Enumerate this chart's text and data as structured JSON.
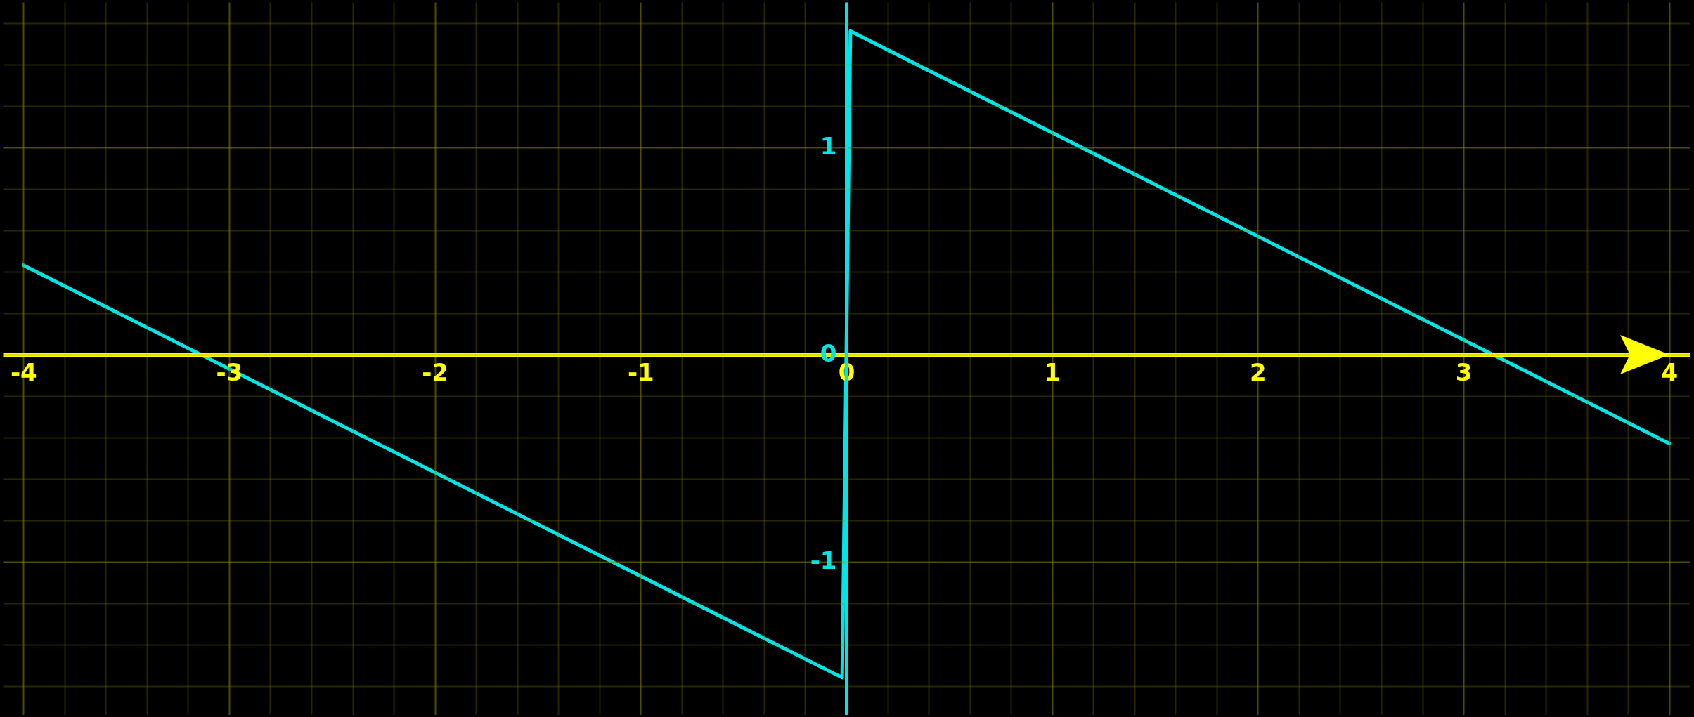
{
  "chart_data": {
    "type": "line",
    "x": [
      -4,
      -0.02,
      0.02,
      4
    ],
    "series": [
      {
        "color": "#00e5e5",
        "values": [
          0.43,
          -1.56,
          1.56,
          -0.43
        ]
      }
    ],
    "xlim": [
      -4.1,
      4.1
    ],
    "ylim": [
      -1.74,
      1.7
    ],
    "xticks": [
      -4,
      {
        "value": -3.8,
        "label": null
      },
      {
        "value": -3.6,
        "label": null
      },
      {
        "value": -3.4,
        "label": null
      },
      {
        "value": -3.2,
        "label": null
      },
      -3,
      {
        "value": -2.8,
        "label": null
      },
      {
        "value": -2.6,
        "label": null
      },
      {
        "value": -2.4,
        "label": null
      },
      {
        "value": -2.2,
        "label": null
      },
      -2,
      {
        "value": -1.8,
        "label": null
      },
      {
        "value": -1.6,
        "label": null
      },
      {
        "value": -1.4,
        "label": null
      },
      {
        "value": -1.2,
        "label": null
      },
      -1,
      {
        "value": -0.8,
        "label": null
      },
      {
        "value": -0.6,
        "label": null
      },
      {
        "value": -0.4,
        "label": null
      },
      {
        "value": -0.2,
        "label": null
      },
      0,
      {
        "value": 0.2,
        "label": null
      },
      {
        "value": 0.4,
        "label": null
      },
      {
        "value": 0.6,
        "label": null
      },
      {
        "value": 0.8,
        "label": null
      },
      1,
      {
        "value": 1.2,
        "label": null
      },
      {
        "value": 1.4,
        "label": null
      },
      {
        "value": 1.6,
        "label": null
      },
      {
        "value": 1.8,
        "label": null
      },
      2,
      {
        "value": 2.2,
        "label": null
      },
      {
        "value": 2.4,
        "label": null
      },
      {
        "value": 2.6,
        "label": null
      },
      {
        "value": 2.8,
        "label": null
      },
      3,
      {
        "value": 3.2,
        "label": null
      },
      {
        "value": 3.4,
        "label": null
      },
      {
        "value": 3.6,
        "label": null
      },
      {
        "value": 3.8,
        "label": null
      },
      4
    ],
    "yticks": [
      {
        "value": -1.6,
        "label": null
      },
      {
        "value": -1.4,
        "label": null
      },
      {
        "value": -1.2,
        "label": null
      },
      -1,
      {
        "value": -0.8,
        "label": null
      },
      {
        "value": -0.6,
        "label": null
      },
      {
        "value": -0.4,
        "label": null
      },
      {
        "value": -0.2,
        "label": null
      },
      0,
      {
        "value": 0.2,
        "label": null
      },
      {
        "value": 0.4,
        "label": null
      },
      {
        "value": 0.6,
        "label": null
      },
      {
        "value": 0.8,
        "label": null
      },
      1,
      {
        "value": 1.2,
        "label": null
      },
      {
        "value": 1.4,
        "label": null
      },
      {
        "value": 1.6,
        "label": null
      }
    ],
    "grid": true,
    "line_style": "solid"
  }
}
